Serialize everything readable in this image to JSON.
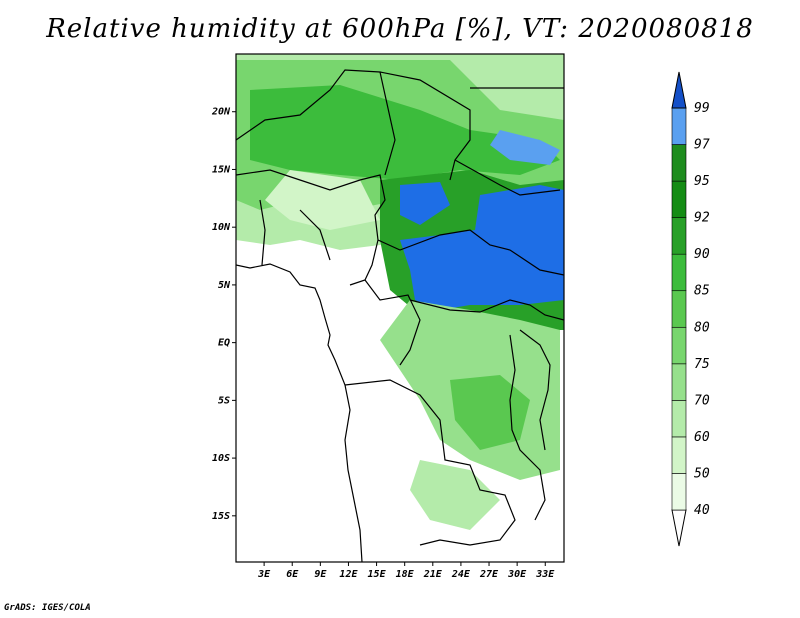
{
  "title": "Relative humidity at 600hPa [%], VT: 2020080818",
  "credit": "GrADS: IGES/COLA",
  "map": {
    "lon_range": [
      0,
      35
    ],
    "lat_range": [
      -19,
      25
    ],
    "lat_labels": [
      "20N",
      "15N",
      "10N",
      "5N",
      "EQ",
      "5S",
      "10S",
      "15S"
    ],
    "lat_values": [
      20,
      15,
      10,
      5,
      0,
      -5,
      -10,
      -15
    ],
    "lon_labels": [
      "3E",
      "6E",
      "9E",
      "12E",
      "15E",
      "18E",
      "21E",
      "24E",
      "27E",
      "30E",
      "33E"
    ],
    "lon_values": [
      3,
      6,
      9,
      12,
      15,
      18,
      21,
      24,
      27,
      30,
      33
    ]
  },
  "colorbar": {
    "levels": [
      "40",
      "50",
      "60",
      "70",
      "75",
      "80",
      "85",
      "90",
      "92",
      "95",
      "97",
      "99"
    ],
    "colors": [
      "#ebfbe6",
      "#d2f5c8",
      "#b4ebaa",
      "#96e08c",
      "#78d66e",
      "#5ac850",
      "#3cbc3c",
      "#28a028",
      "#148c14",
      "#1e8c1e",
      "#5aa0f0",
      "#1e6ee6",
      "#1450c8"
    ]
  }
}
